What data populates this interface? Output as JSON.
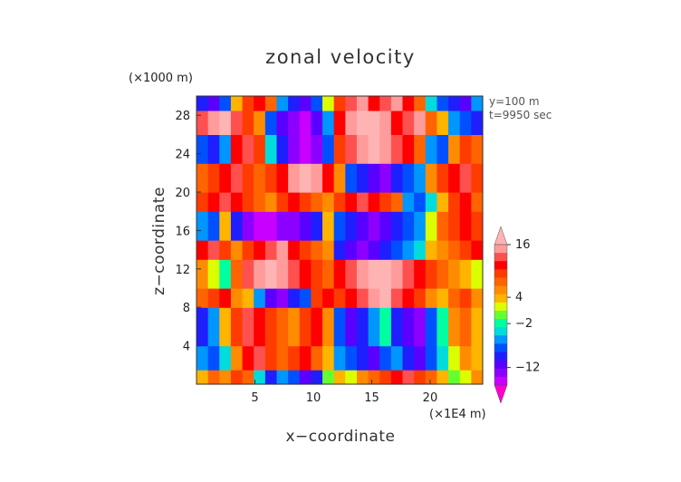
{
  "chart_data": {
    "type": "heatmap",
    "title": "zonal velocity",
    "xlabel": "x−coordinate",
    "ylabel": "z−coordinate",
    "x_multiplier": "(×1E4 m)",
    "y_multiplier": "(×1000 m)",
    "annotations": [
      "y=100 m",
      "t=9950 sec"
    ],
    "x_ticks": [
      5,
      10,
      15,
      20
    ],
    "y_ticks": [
      4,
      8,
      12,
      16,
      20,
      24,
      28
    ],
    "xlim": [
      0,
      24.5
    ],
    "ylim": [
      0,
      30
    ],
    "colorbar": {
      "tick_labels": [
        "16",
        "4",
        "−2",
        "−12"
      ],
      "tick_values": [
        16,
        4,
        -2,
        -12
      ],
      "levels": [
        -18,
        -16,
        -14,
        -12,
        -10,
        -8,
        -6,
        -4,
        -2,
        0,
        2,
        4,
        6,
        8,
        10,
        12,
        14,
        16,
        18
      ],
      "extend": "both"
    },
    "colors": [
      "#ff00cc",
      "#c800ff",
      "#8c00ff",
      "#5a00ff",
      "#1e1eff",
      "#0050ff",
      "#0096ff",
      "#00dcdc",
      "#00ffa0",
      "#64ff32",
      "#dcff00",
      "#ffb400",
      "#ff8c00",
      "#ff6400",
      "#ff3c00",
      "#ff0000",
      "#ff5050",
      "#ff9b9b",
      "#ffb4b4"
    ],
    "bands": [
      {
        "z": [
          0,
          1.5
        ],
        "values": [
          4,
          8,
          6,
          10,
          8,
          -4,
          -10,
          -6,
          -8,
          -12,
          -10,
          0,
          4,
          2,
          6,
          8,
          10,
          12,
          14,
          10,
          8,
          4,
          0,
          2,
          6
        ]
      },
      {
        "z": [
          1.5,
          4
        ],
        "values": [
          -6,
          -8,
          -4,
          6,
          12,
          14,
          10,
          8,
          10,
          12,
          8,
          4,
          -6,
          -8,
          -10,
          -12,
          -8,
          -6,
          -10,
          -12,
          -8,
          -4,
          2,
          6,
          4
        ]
      },
      {
        "z": [
          4,
          8
        ],
        "values": [
          -10,
          -6,
          4,
          10,
          14,
          12,
          10,
          8,
          6,
          10,
          12,
          6,
          -8,
          -12,
          -10,
          -6,
          -2,
          -10,
          -12,
          -14,
          -8,
          -2,
          6,
          8,
          4
        ]
      },
      {
        "z": [
          8,
          10
        ],
        "values": [
          8,
          10,
          12,
          6,
          4,
          -6,
          -12,
          -14,
          -10,
          -8,
          10,
          12,
          10,
          12,
          14,
          16,
          18,
          14,
          12,
          10,
          6,
          4,
          8,
          10,
          6
        ]
      },
      {
        "z": [
          10,
          13
        ],
        "values": [
          6,
          2,
          -2,
          8,
          14,
          16,
          18,
          16,
          14,
          12,
          10,
          8,
          12,
          14,
          16,
          18,
          18,
          16,
          14,
          12,
          10,
          8,
          6,
          4,
          2
        ]
      },
      {
        "z": [
          13,
          15
        ],
        "values": [
          12,
          14,
          10,
          6,
          10,
          12,
          14,
          16,
          12,
          10,
          8,
          6,
          -10,
          -12,
          -14,
          -12,
          -10,
          -8,
          -6,
          -4,
          4,
          6,
          8,
          10,
          12
        ]
      },
      {
        "z": [
          15,
          18
        ],
        "values": [
          -6,
          -8,
          4,
          -10,
          -14,
          -16,
          -16,
          -14,
          -14,
          -12,
          -10,
          4,
          -8,
          -10,
          -12,
          -14,
          -12,
          -10,
          -8,
          -6,
          2,
          8,
          10,
          12,
          10
        ]
      },
      {
        "z": [
          18,
          20
        ],
        "values": [
          10,
          12,
          14,
          12,
          10,
          8,
          6,
          10,
          12,
          10,
          8,
          6,
          10,
          12,
          14,
          12,
          10,
          8,
          -6,
          -8,
          -4,
          4,
          10,
          12,
          8
        ]
      },
      {
        "z": [
          20,
          23
        ],
        "values": [
          8,
          10,
          12,
          14,
          10,
          8,
          10,
          12,
          16,
          18,
          16,
          12,
          6,
          -8,
          -10,
          -12,
          -14,
          -10,
          -8,
          -6,
          6,
          10,
          12,
          14,
          10
        ]
      },
      {
        "z": [
          23,
          26
        ],
        "values": [
          -8,
          -10,
          -6,
          12,
          14,
          10,
          -4,
          -10,
          -14,
          -16,
          -14,
          -8,
          10,
          14,
          16,
          18,
          16,
          14,
          12,
          8,
          -6,
          -8,
          6,
          10,
          8
        ]
      },
      {
        "z": [
          26,
          28.5
        ],
        "values": [
          14,
          16,
          18,
          14,
          10,
          6,
          -8,
          -12,
          -14,
          -16,
          -12,
          -6,
          12,
          16,
          18,
          18,
          16,
          12,
          14,
          16,
          8,
          4,
          -6,
          -8,
          -10
        ]
      },
      {
        "z": [
          28.5,
          30
        ],
        "values": [
          -10,
          -12,
          -8,
          4,
          10,
          12,
          8,
          -6,
          -10,
          -12,
          -8,
          2,
          10,
          14,
          16,
          12,
          14,
          16,
          12,
          8,
          -4,
          -8,
          -10,
          -12,
          -6
        ]
      }
    ]
  }
}
